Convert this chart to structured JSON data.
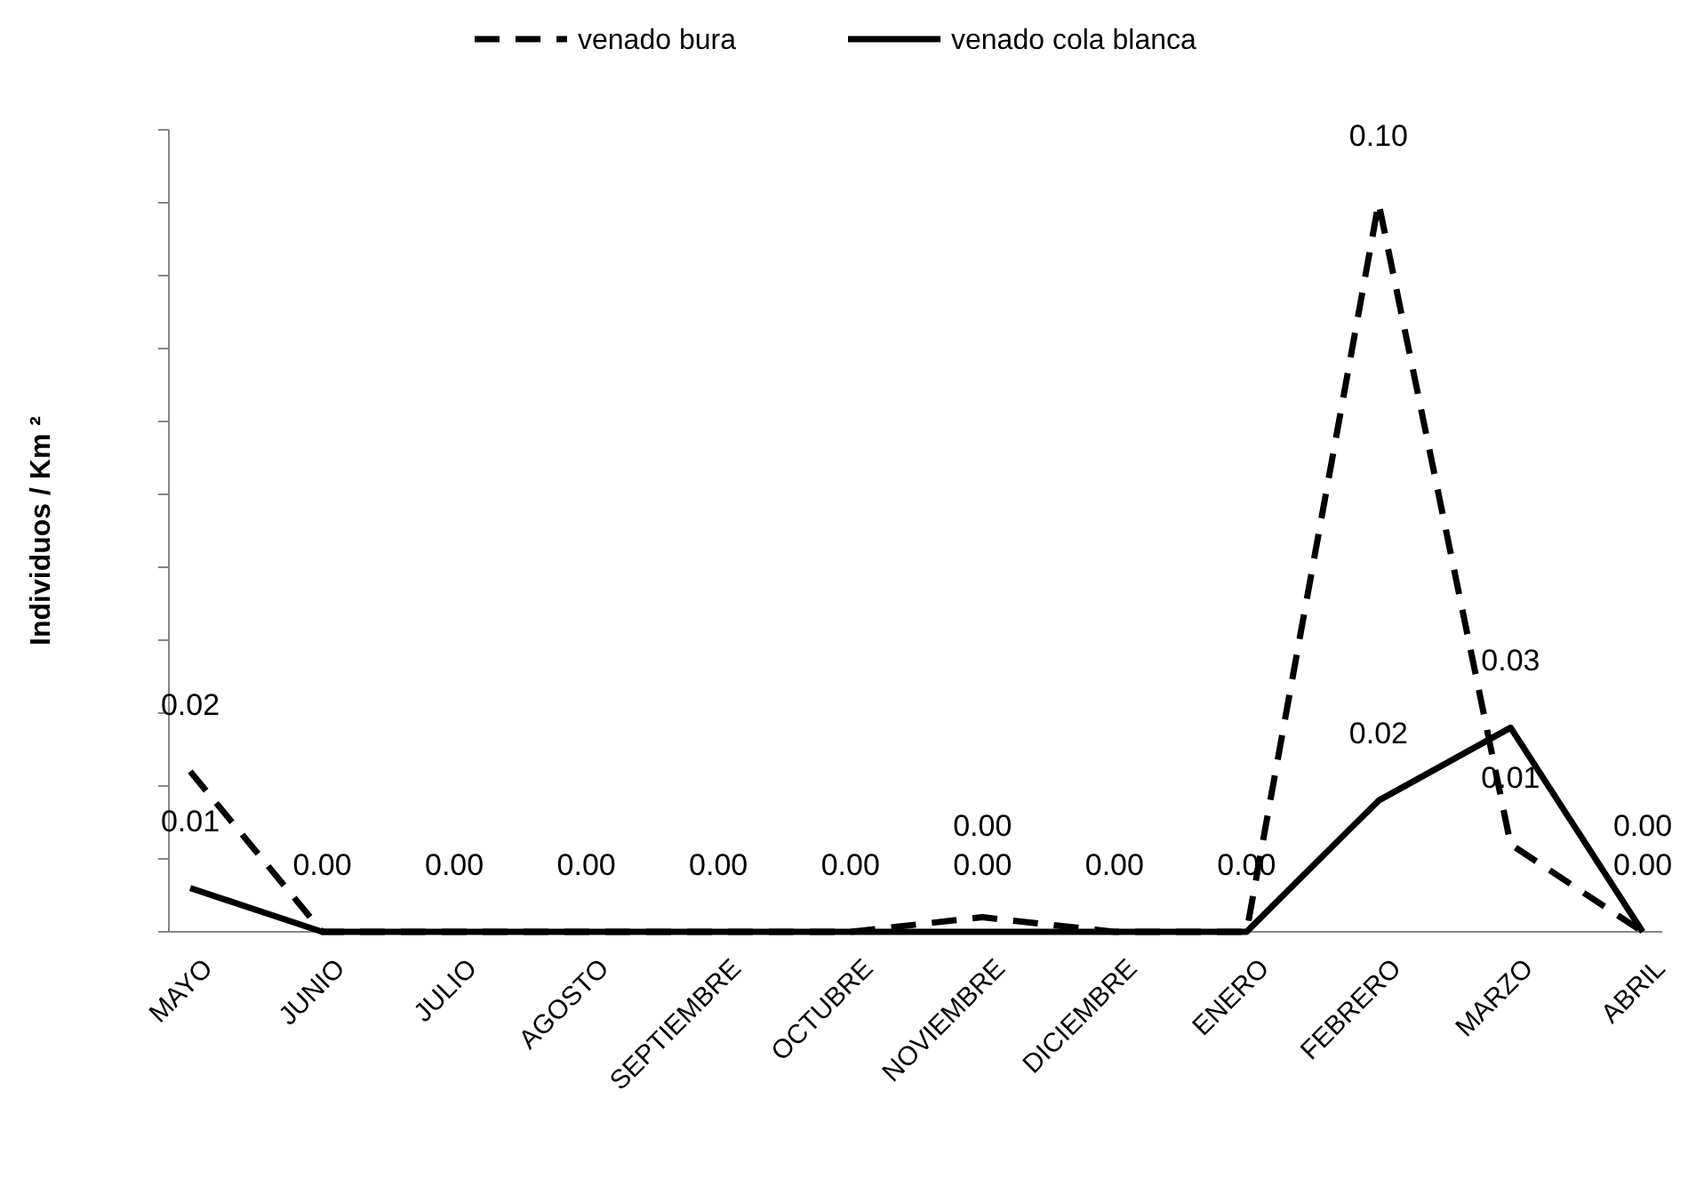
{
  "chart_data": {
    "type": "line",
    "ylabel": "Individuos / Km ²",
    "categories": [
      "MAYO",
      "JUNIO",
      "JULIO",
      "AGOSTO",
      "SEPTIEMBRE",
      "OCTUBRE",
      "NOVIEMBRE",
      "DICIEMBRE",
      "ENERO",
      "FEBRERO",
      "MARZO",
      "ABRIL"
    ],
    "series": [
      {
        "name": "venado bura",
        "color": "#000000",
        "line_style": "dashed",
        "values": [
          0.022,
          0,
          0,
          0,
          0,
          0,
          0.002,
          0,
          0,
          0.1,
          0.012,
          0
        ],
        "value_labels": [
          "0.02",
          null,
          null,
          null,
          null,
          null,
          "0.00",
          null,
          null,
          "0.10",
          "0.01",
          "0.00"
        ]
      },
      {
        "name": "venado cola blanca",
        "color": "#000000",
        "line_style": "solid",
        "values": [
          0.006,
          0,
          0,
          0,
          0,
          0,
          0,
          0,
          0,
          0.018,
          0.028,
          0
        ],
        "value_labels": [
          "0.01",
          "0.00",
          "0.00",
          "0.00",
          "0.00",
          "0.00",
          "0.00",
          "0.00",
          "0.00",
          "0.02",
          "0.03",
          "0.00"
        ]
      }
    ],
    "ylim": [
      0,
      0.11
    ],
    "yticks": [
      {
        "value": 0,
        "label": null
      },
      {
        "value": 0.01,
        "label": null
      },
      {
        "value": 0.02,
        "label": null
      },
      {
        "value": 0.03,
        "label": null
      },
      {
        "value": 0.04,
        "label": null
      },
      {
        "value": 0.05,
        "label": null
      },
      {
        "value": 0.06,
        "label": null
      },
      {
        "value": 0.07,
        "label": null
      },
      {
        "value": 0.08,
        "label": null
      },
      {
        "value": 0.09,
        "label": null
      },
      {
        "value": 0.1,
        "label": null
      },
      {
        "value": 0.11,
        "label": null
      }
    ],
    "legend": "top",
    "tick_labels": "x",
    "marker": "none",
    "grid": false
  }
}
